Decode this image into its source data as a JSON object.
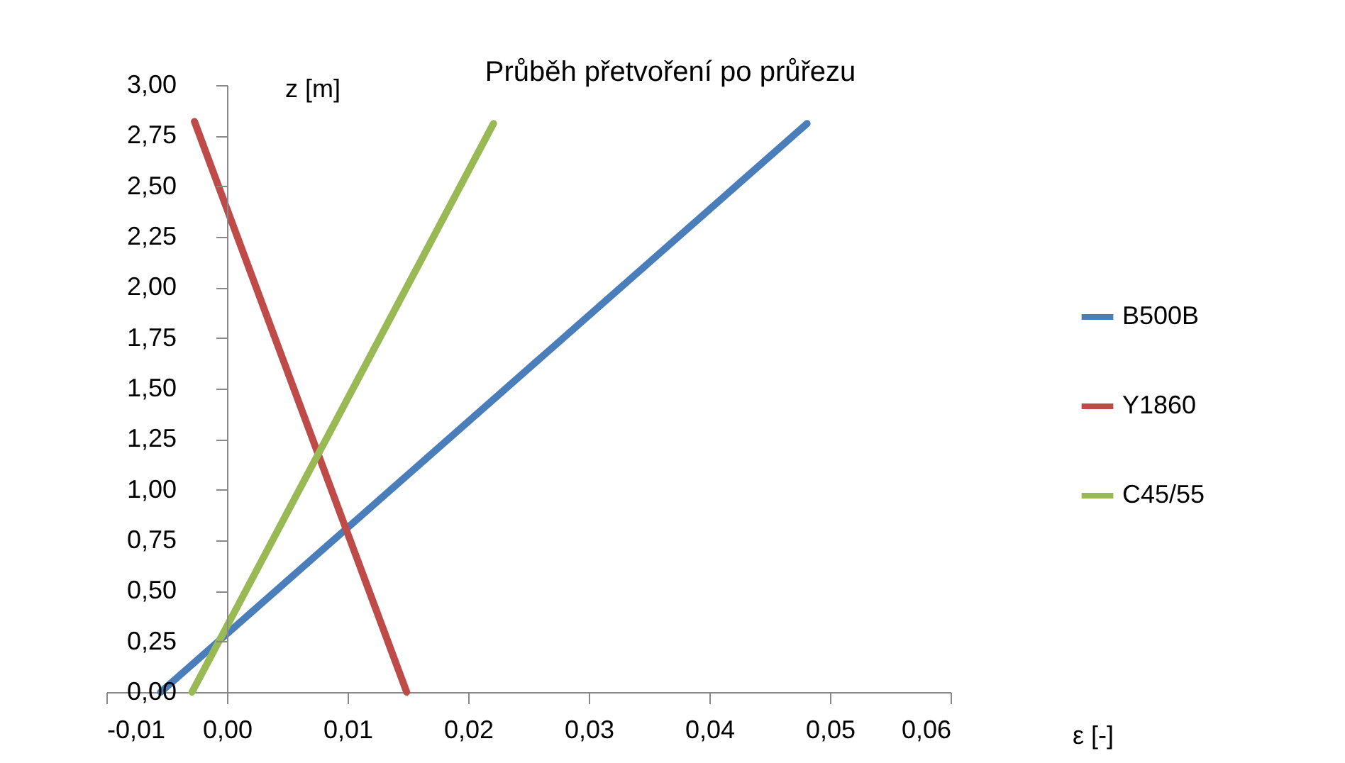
{
  "chart_data": {
    "type": "line",
    "title": "Průběh přetvoření po průřezu",
    "xlabel": "ε [-]",
    "ylabel": "z [m]",
    "xlim": [
      -0.01,
      0.06
    ],
    "xticks": [
      {
        "value": -0.01,
        "label": "-0,01"
      },
      {
        "value": 0,
        "label": "0,00"
      },
      {
        "value": 0.01,
        "label": "0,01"
      },
      {
        "value": 0.02,
        "label": "0,02"
      },
      {
        "value": 0.03,
        "label": "0,03"
      },
      {
        "value": 0.04,
        "label": "0,04"
      },
      {
        "value": 0.05,
        "label": "0,05"
      },
      {
        "value": 0.06,
        "label": "0,06"
      }
    ],
    "ylim": [
      0,
      3
    ],
    "yticks": [
      {
        "value": 0,
        "label": "0,00"
      },
      {
        "value": 0.25,
        "label": "0,25"
      },
      {
        "value": 0.5,
        "label": "0,50"
      },
      {
        "value": 0.75,
        "label": "0,75"
      },
      {
        "value": 1,
        "label": "1,00"
      },
      {
        "value": 1.25,
        "label": "1,25"
      },
      {
        "value": 1.5,
        "label": "1,50"
      },
      {
        "value": 1.75,
        "label": "1,75"
      },
      {
        "value": 2,
        "label": "2,00"
      },
      {
        "value": 2.25,
        "label": "2,25"
      },
      {
        "value": 2.5,
        "label": "2,50"
      },
      {
        "value": 2.75,
        "label": "2,75"
      },
      {
        "value": 3,
        "label": "3,00"
      }
    ],
    "grid": false,
    "legend": "right",
    "marker": "none",
    "line_style": "solid",
    "series": [
      {
        "name": "B500B",
        "color": "#4a7ebb",
        "x": [
          -0.0055,
          0.0481
        ],
        "values": [
          0,
          2.81
        ]
      },
      {
        "name": "Y1860",
        "color": "#be4b48",
        "x": [
          -0.0027,
          0.0149
        ],
        "values": [
          2.82,
          0
        ]
      },
      {
        "name": "C45/55",
        "color": "#98b954",
        "x": [
          -0.0029,
          0.0221
        ],
        "values": [
          0,
          2.81
        ]
      }
    ]
  }
}
